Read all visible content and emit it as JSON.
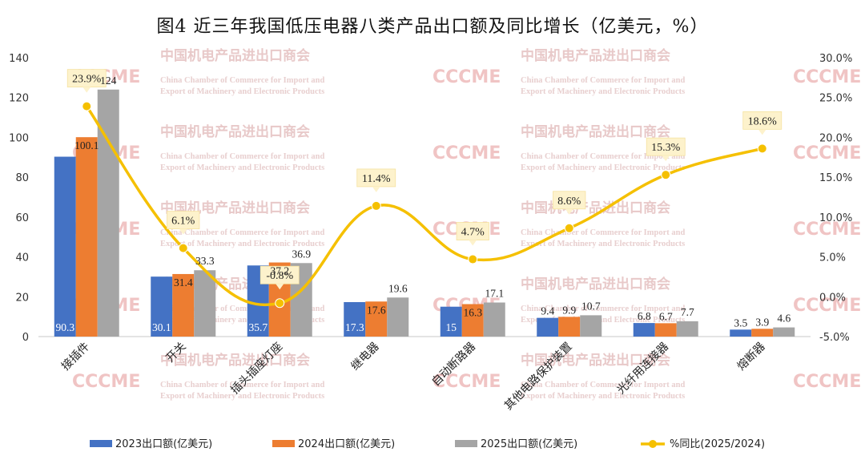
{
  "watermark": {
    "cn": "中国机电产品进出口商会",
    "en1": "China Chamber of Commerce for Import and",
    "en2": "Export of Machinery and Electronic Products",
    "logo": "CCCME"
  },
  "chart_data": {
    "type": "bar",
    "title": "图4  近三年我国低压电器八类产品出口额及同比增长（亿美元，%）",
    "categories": [
      "接插件",
      "开关",
      "插头插座灯座",
      "继电器",
      "自动断路器",
      "其他电路保护装置",
      "光纤用连接器",
      "熔断器"
    ],
    "series": [
      {
        "name": "2023出口额(亿美元)",
        "color": "#4472c4",
        "values": [
          90.3,
          30.1,
          35.7,
          17.3,
          15,
          9.4,
          6.8,
          3.5
        ],
        "labels": [
          "90.3",
          "30.1",
          "35.7",
          "17.3",
          "15",
          "9.4",
          "6.8",
          "3.5"
        ]
      },
      {
        "name": "2024出口额(亿美元)",
        "color": "#ed7d31",
        "values": [
          100.1,
          31.4,
          37.2,
          17.6,
          16.3,
          9.9,
          6.7,
          3.9
        ],
        "labels": [
          "100.1",
          "31.4",
          "37.2",
          "17.6",
          "16.3",
          "9.9",
          "6.7",
          "3.9"
        ]
      },
      {
        "name": "2025出口额(亿美元)",
        "color": "#a5a5a5",
        "values": [
          124,
          33.3,
          36.9,
          19.6,
          17.1,
          10.7,
          7.7,
          4.6
        ],
        "labels": [
          "124",
          "33.3",
          "36.9",
          "19.6",
          "17.1",
          "10.7",
          "7.7",
          "4.6"
        ]
      }
    ],
    "line_series": {
      "name": "%同比(2025/2024)",
      "color": "#f5c000",
      "values": [
        23.9,
        6.1,
        -0.8,
        11.4,
        4.7,
        8.6,
        15.3,
        18.6
      ],
      "labels": [
        "23.9%",
        "6.1%",
        "-0.8%",
        "11.4%",
        "4.7%",
        "8.6%",
        "15.3%",
        "18.6%"
      ]
    },
    "y_left": {
      "min": 0,
      "max": 140,
      "ticks": [
        "0",
        "20",
        "40",
        "60",
        "80",
        "100",
        "120",
        "140"
      ]
    },
    "y_right": {
      "min": -5,
      "max": 30,
      "ticks": [
        "-5.0%",
        "0.0%",
        "5.0%",
        "10.0%",
        "15.0%",
        "20.0%",
        "25.0%",
        "30.0%"
      ]
    },
    "legend_position": "bottom",
    "grid": false
  }
}
